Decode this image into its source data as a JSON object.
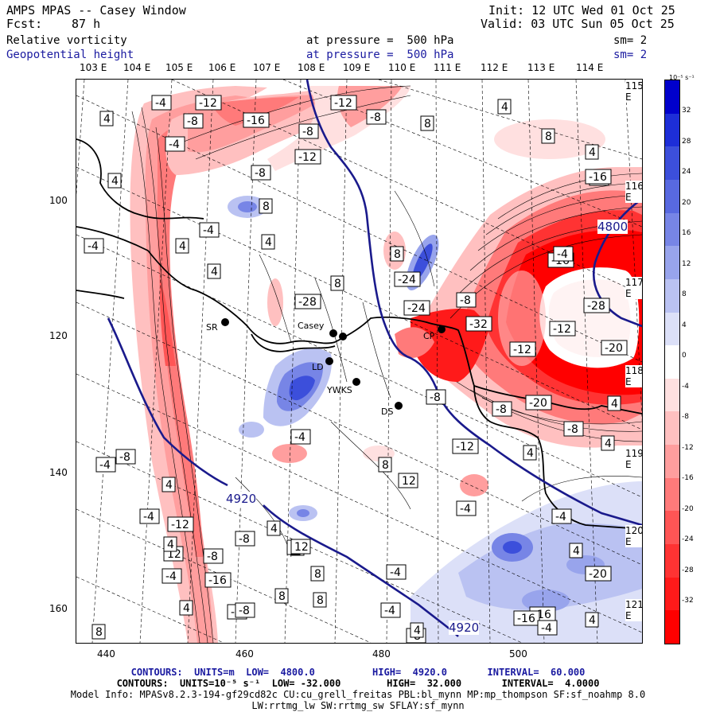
{
  "header": {
    "title": "AMPS MPAS -- Casey Window",
    "init": "Init: 12 UTC Wed 01 Oct 25",
    "fcst_label": "Fcst:",
    "fcst_value": "87 h",
    "valid": "Valid: 03 UTC Sun 05 Oct 25",
    "field1": "Relative vorticity",
    "field1_pressure": "at pressure =  500 hPa",
    "field1_sm": "sm= 2",
    "field2": "Geopotential height",
    "field2_pressure": "at pressure =  500 hPa",
    "field2_sm": "sm= 2"
  },
  "lon_labels_top": [
    "103 E",
    "104 E",
    "105 E",
    "106 E",
    "107 E",
    "108 E",
    "109 E",
    "110 E",
    "111 E",
    "112 E",
    "113 E",
    "114 E"
  ],
  "lon_labels_right": [
    "115 E",
    "116 E",
    "117 E",
    "118 E",
    "119 E",
    "120 E",
    "121 E"
  ],
  "y_ticks": [
    "100",
    "120",
    "140",
    "160"
  ],
  "x_ticks": [
    "440",
    "460",
    "480",
    "500"
  ],
  "colorbar": {
    "unit": "10⁻⁵ s⁻¹",
    "ticks": [
      "32",
      "28",
      "24",
      "20",
      "16",
      "12",
      "8",
      "4",
      "0",
      "-4",
      "-8",
      "-12",
      "-16",
      "-20",
      "-24",
      "-28",
      "-32"
    ],
    "colors": [
      "#0000cc",
      "#1d2ed8",
      "#3c4fdb",
      "#5869e0",
      "#7785e6",
      "#98a4ec",
      "#bac2f2",
      "#dce0f8",
      "#ffffff",
      "#ffe0e0",
      "#ffc0c0",
      "#ff9e9e",
      "#ff7a7a",
      "#ff5555",
      "#ff3333",
      "#ff1a1a",
      "#ff0000"
    ]
  },
  "stations": [
    "SR",
    "Casey",
    "LD",
    "YWKS",
    "DS",
    "CP"
  ],
  "contour_labels": [
    "4",
    "-4",
    "-12",
    "-12",
    "-8",
    "-4",
    "4",
    "-16",
    "-8",
    "-8",
    "8",
    "4",
    "-12",
    "-8",
    "8",
    "4",
    "-4",
    "-4",
    "-16",
    "4",
    "4",
    "-4",
    "8",
    "8",
    "4",
    "8",
    "-28",
    "-24",
    "-24",
    "-32",
    "-16",
    "-8",
    "-12",
    "-4",
    "-28",
    "-20",
    "-12",
    "-20",
    "-8",
    "4",
    "-8",
    "-8",
    "-12",
    "4",
    "4",
    "-4",
    "-8",
    "4",
    "-4",
    "8",
    "12",
    "-4",
    "-4",
    "-8",
    "4",
    "12",
    "8",
    "-4",
    "8",
    "8",
    "-8",
    "-16",
    "-8",
    "8",
    "12",
    "-16",
    "4",
    "-4",
    "-16",
    "-8",
    "4",
    "-4",
    "4",
    "-12",
    "-8",
    "-4",
    "4",
    "-20",
    "4",
    "8",
    "-4",
    "4"
  ],
  "height_labels": [
    "4920",
    "4920",
    "4800"
  ],
  "footer": {
    "line1_contours": "CONTOURS:  UNITS=m  LOW=  4800.0          HIGH=  4920.0       INTERVAL=  60.000",
    "line2_contours": "CONTOURS:  UNITS=10⁻⁵ s⁻¹  LOW= -32.000        HIGH=  32.000       INTERVAL=  4.0000",
    "model_info": "Model Info: MPASv8.2.3-194-gf29cd82c CU:cu_grell_freitas PBL:bl_mynn MP:mp_thompson SF:sf_noahmp 8.0",
    "model_info2": "LW:rrtmg_lw SW:rrtmg_sw SFLAY:sf_mynn"
  }
}
